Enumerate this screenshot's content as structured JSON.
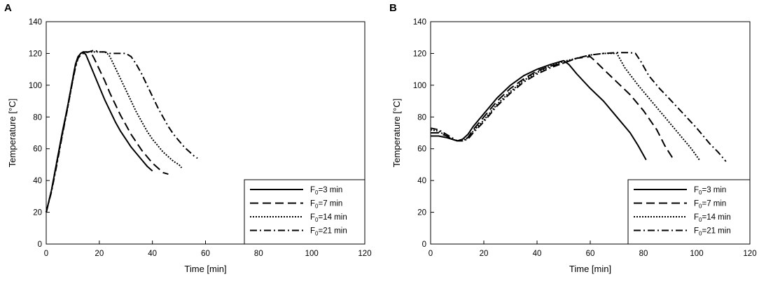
{
  "chart_data": [
    {
      "type": "line",
      "panel_label": "A",
      "xlabel": "Time [min]",
      "ylabel": "Temperature [°C]",
      "xlim": [
        0,
        120
      ],
      "ylim": [
        0,
        140
      ],
      "xticks": [
        0,
        20,
        40,
        60,
        80,
        100,
        120
      ],
      "yticks": [
        0,
        20,
        40,
        60,
        80,
        100,
        120,
        140
      ],
      "grid": false,
      "legend_position": "bottom-right",
      "series": [
        {
          "name": "F0=3 min",
          "label_main": "F",
          "label_sub": "0",
          "label_rest": "=3  min",
          "dash": "solid",
          "points": [
            [
              0,
              20
            ],
            [
              2,
              34
            ],
            [
              4,
              52
            ],
            [
              6,
              70
            ],
            [
              8,
              86
            ],
            [
              10,
              104
            ],
            [
              11,
              113
            ],
            [
              12,
              118
            ],
            [
              13,
              120
            ],
            [
              14,
              121
            ],
            [
              15,
              119
            ],
            [
              16,
              115
            ],
            [
              18,
              107
            ],
            [
              20,
              99
            ],
            [
              22,
              91
            ],
            [
              24,
              84
            ],
            [
              26,
              77
            ],
            [
              28,
              71
            ],
            [
              30,
              66
            ],
            [
              32,
              61
            ],
            [
              34,
              57
            ],
            [
              36,
              53
            ],
            [
              38,
              49
            ],
            [
              40,
              46
            ]
          ]
        },
        {
          "name": "F0=7 min",
          "label_main": "F",
          "label_sub": "0",
          "label_rest": "=7  min",
          "dash": "dashed",
          "points": [
            [
              0,
              20
            ],
            [
              2,
              34
            ],
            [
              4,
              52
            ],
            [
              6,
              69
            ],
            [
              8,
              86
            ],
            [
              10,
              104
            ],
            [
              11,
              113
            ],
            [
              12,
              118
            ],
            [
              13,
              120
            ],
            [
              14,
              121
            ],
            [
              16,
              121
            ],
            [
              17,
              120
            ],
            [
              18,
              117
            ],
            [
              20,
              110
            ],
            [
              22,
              103
            ],
            [
              24,
              95
            ],
            [
              26,
              88
            ],
            [
              28,
              81
            ],
            [
              30,
              75
            ],
            [
              32,
              69
            ],
            [
              34,
              64
            ],
            [
              36,
              59
            ],
            [
              38,
              55
            ],
            [
              40,
              51
            ],
            [
              42,
              48
            ],
            [
              44,
              45
            ],
            [
              46,
              44
            ]
          ]
        },
        {
          "name": "F0=14 min",
          "label_main": "F",
          "label_sub": "0",
          "label_rest": "=14  min",
          "dash": "dotted",
          "points": [
            [
              0,
              20
            ],
            [
              2,
              34
            ],
            [
              4,
              51
            ],
            [
              6,
              69
            ],
            [
              8,
              85
            ],
            [
              10,
              103
            ],
            [
              11,
              112
            ],
            [
              12,
              117
            ],
            [
              13,
              120
            ],
            [
              14,
              121
            ],
            [
              16,
              121
            ],
            [
              18,
              121
            ],
            [
              20,
              121
            ],
            [
              22,
              121
            ],
            [
              23,
              120
            ],
            [
              24,
              118
            ],
            [
              26,
              111
            ],
            [
              28,
              104
            ],
            [
              30,
              97
            ],
            [
              32,
              90
            ],
            [
              34,
              83
            ],
            [
              36,
              77
            ],
            [
              38,
              71
            ],
            [
              40,
              66
            ],
            [
              42,
              62
            ],
            [
              44,
              58
            ],
            [
              46,
              55
            ],
            [
              48,
              52
            ],
            [
              50,
              50
            ],
            [
              51,
              48
            ]
          ]
        },
        {
          "name": "F0=21 min",
          "label_main": "F",
          "label_sub": "0",
          "label_rest": "=21  min",
          "dash": "dashdot",
          "points": [
            [
              0,
              20
            ],
            [
              2,
              33
            ],
            [
              4,
              50
            ],
            [
              6,
              68
            ],
            [
              8,
              85
            ],
            [
              10,
              103
            ],
            [
              11,
              111
            ],
            [
              12,
              117
            ],
            [
              13,
              119
            ],
            [
              14,
              120
            ],
            [
              16,
              121
            ],
            [
              18,
              122
            ],
            [
              20,
              121
            ],
            [
              22,
              121
            ],
            [
              24,
              120
            ],
            [
              26,
              120
            ],
            [
              28,
              120
            ],
            [
              30,
              120
            ],
            [
              32,
              118
            ],
            [
              34,
              113
            ],
            [
              36,
              107
            ],
            [
              38,
              100
            ],
            [
              40,
              93
            ],
            [
              42,
              86
            ],
            [
              44,
              80
            ],
            [
              46,
              74
            ],
            [
              48,
              69
            ],
            [
              50,
              65
            ],
            [
              52,
              61
            ],
            [
              54,
              58
            ],
            [
              56,
              55
            ],
            [
              57,
              54
            ]
          ]
        }
      ]
    },
    {
      "type": "line",
      "panel_label": "B",
      "xlabel": "Time [min]",
      "ylabel": "Temperature [°C]",
      "xlim": [
        0,
        120
      ],
      "ylim": [
        0,
        140
      ],
      "xticks": [
        0,
        20,
        40,
        60,
        80,
        100,
        120
      ],
      "yticks": [
        0,
        20,
        40,
        60,
        80,
        100,
        120,
        140
      ],
      "grid": false,
      "legend_position": "bottom-right",
      "series": [
        {
          "name": "F0=3 min",
          "label_main": "F",
          "label_sub": "0",
          "label_rest": "=3  min",
          "dash": "solid",
          "points": [
            [
              0,
              68
            ],
            [
              3,
              68
            ],
            [
              6,
              67
            ],
            [
              8,
              66
            ],
            [
              10,
              65
            ],
            [
              12,
              66
            ],
            [
              14,
              69
            ],
            [
              16,
              74
            ],
            [
              20,
              82
            ],
            [
              25,
              92
            ],
            [
              30,
              100
            ],
            [
              35,
              106
            ],
            [
              40,
              110
            ],
            [
              45,
              113
            ],
            [
              50,
              115.5
            ],
            [
              52,
              113
            ],
            [
              55,
              107
            ],
            [
              60,
              98
            ],
            [
              65,
              90
            ],
            [
              70,
              80
            ],
            [
              75,
              70
            ],
            [
              78,
              62
            ],
            [
              81,
              53
            ]
          ]
        },
        {
          "name": "F0=7 min",
          "label_main": "F",
          "label_sub": "0",
          "label_rest": "=7  min",
          "dash": "dashed",
          "points": [
            [
              0,
              70
            ],
            [
              3,
              70
            ],
            [
              6,
              68
            ],
            [
              8,
              66
            ],
            [
              10,
              65
            ],
            [
              12,
              65
            ],
            [
              14,
              67
            ],
            [
              16,
              72
            ],
            [
              20,
              80
            ],
            [
              25,
              90
            ],
            [
              30,
              98
            ],
            [
              35,
              104
            ],
            [
              40,
              109
            ],
            [
              45,
              112
            ],
            [
              50,
              114
            ],
            [
              55,
              117
            ],
            [
              60,
              118
            ],
            [
              62,
              115
            ],
            [
              65,
              110
            ],
            [
              70,
              102
            ],
            [
              75,
              94
            ],
            [
              80,
              84
            ],
            [
              85,
              72
            ],
            [
              88,
              62
            ],
            [
              91,
              54
            ]
          ]
        },
        {
          "name": "F0=14 min",
          "label_main": "F",
          "label_sub": "0",
          "label_rest": "=14  min",
          "dash": "dotted",
          "points": [
            [
              0,
              72
            ],
            [
              3,
              71
            ],
            [
              6,
              68
            ],
            [
              8,
              66
            ],
            [
              10,
              65
            ],
            [
              12,
              65
            ],
            [
              14,
              67
            ],
            [
              16,
              71
            ],
            [
              20,
              78
            ],
            [
              25,
              88
            ],
            [
              30,
              96
            ],
            [
              35,
              103
            ],
            [
              40,
              108
            ],
            [
              45,
              112
            ],
            [
              50,
              115
            ],
            [
              55,
              117
            ],
            [
              60,
              119
            ],
            [
              65,
              120
            ],
            [
              70,
              120
            ],
            [
              71,
              117
            ],
            [
              73,
              111
            ],
            [
              78,
              100
            ],
            [
              83,
              90
            ],
            [
              88,
              80
            ],
            [
              93,
              70
            ],
            [
              98,
              60
            ],
            [
              101,
              53
            ]
          ]
        },
        {
          "name": "F0=21 min",
          "label_main": "F",
          "label_sub": "0",
          "label_rest": "=21  min",
          "dash": "dashdot",
          "points": [
            [
              0,
              73
            ],
            [
              3,
              72
            ],
            [
              6,
              69
            ],
            [
              8,
              67
            ],
            [
              10,
              65
            ],
            [
              12,
              65
            ],
            [
              14,
              66
            ],
            [
              16,
              70
            ],
            [
              20,
              77
            ],
            [
              25,
              87
            ],
            [
              30,
              95
            ],
            [
              35,
              102
            ],
            [
              40,
              107
            ],
            [
              45,
              111
            ],
            [
              50,
              114
            ],
            [
              55,
              117
            ],
            [
              60,
              119
            ],
            [
              65,
              120
            ],
            [
              70,
              120.5
            ],
            [
              75,
              120.5
            ],
            [
              77,
              120
            ],
            [
              79,
              115
            ],
            [
              82,
              106
            ],
            [
              86,
              98
            ],
            [
              90,
              91
            ],
            [
              95,
              82
            ],
            [
              100,
              73
            ],
            [
              105,
              63
            ],
            [
              108,
              58
            ],
            [
              111,
              52
            ]
          ]
        }
      ]
    }
  ]
}
